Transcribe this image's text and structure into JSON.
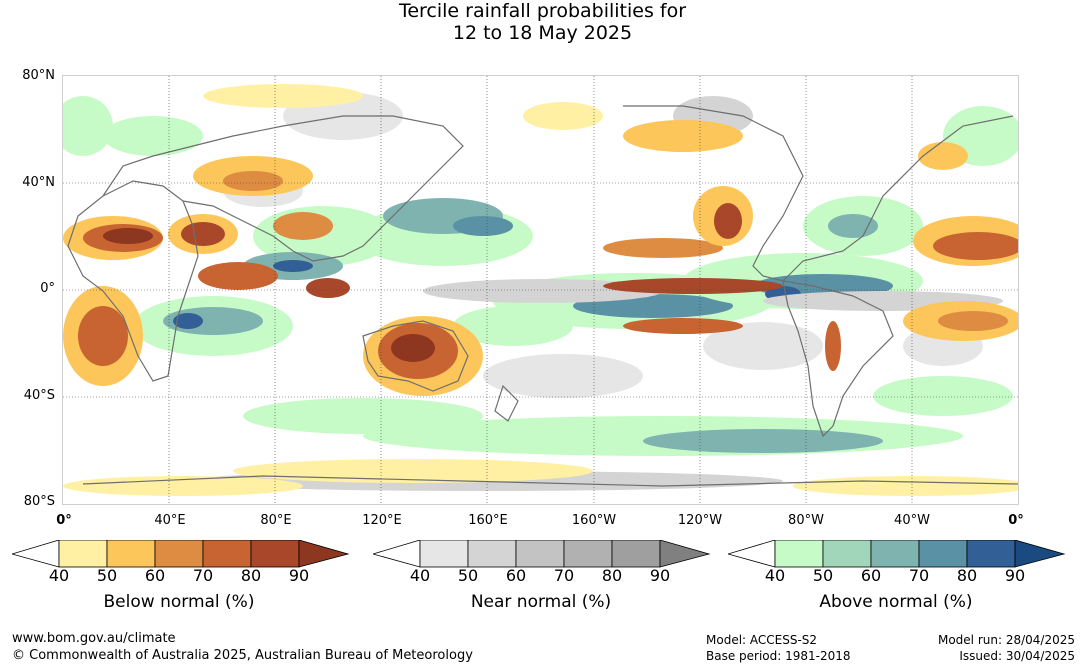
{
  "title": {
    "line1": "Tercile rainfall probabilities for",
    "line2": "12 to 18 May 2025"
  },
  "map": {
    "lat_labels": [
      "80°N",
      "40°N",
      "0°",
      "40°S",
      "80°S"
    ],
    "lon_labels": [
      "0°",
      "40°E",
      "80°E",
      "120°E",
      "160°E",
      "160°W",
      "120°W",
      "80°W",
      "40°W",
      "0°"
    ],
    "colors": {
      "ocean": "#ffffff",
      "land_outline": "#6e6e6e",
      "grid": "#444444"
    }
  },
  "legends": [
    {
      "title": "Below normal (%)",
      "ticks": [
        "40",
        "50",
        "60",
        "70",
        "80",
        "90"
      ],
      "colors": [
        "#fff0a3",
        "#fdc65a",
        "#dd8c41",
        "#c86431",
        "#a9472a",
        "#8d3620"
      ]
    },
    {
      "title": "Near normal (%)",
      "ticks": [
        "40",
        "50",
        "60",
        "70",
        "80",
        "90"
      ],
      "colors": [
        "#e6e6e6",
        "#d4d4d4",
        "#c3c3c3",
        "#b1b1b1",
        "#9f9f9f",
        "#808080"
      ]
    },
    {
      "title": "Above normal (%)",
      "ticks": [
        "40",
        "50",
        "60",
        "70",
        "80",
        "90"
      ],
      "colors": [
        "#c6fbc7",
        "#a1d6bb",
        "#7eb3b0",
        "#5a91a4",
        "#325f96",
        "#1a4a80"
      ]
    }
  ],
  "footer": {
    "website": "www.bom.gov.au/climate",
    "copyright": "© Commonwealth of Australia 2025, Australian Bureau of Meteorology",
    "model": "Model: ACCESS-S2",
    "base_period": "Base period: 1981-2018",
    "model_run": "Model run: 28/04/2025",
    "issued": "Issued: 30/04/2025"
  }
}
